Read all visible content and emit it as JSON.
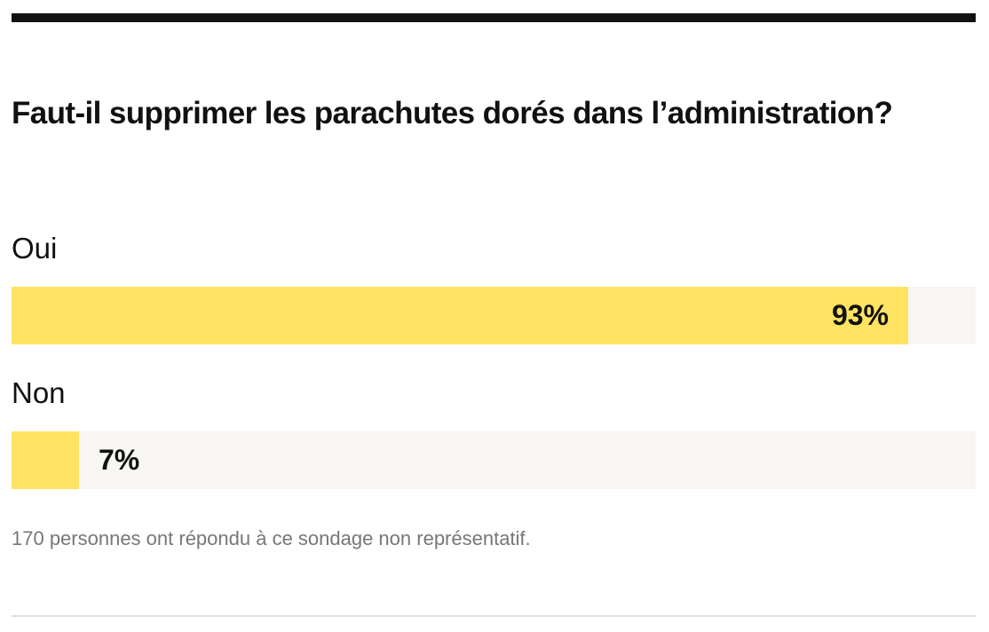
{
  "poll": {
    "question": "Faut-il supprimer les parachutes dorés dans l’administration?",
    "options": [
      {
        "label": "Oui",
        "percent": 93,
        "percent_label": "93%"
      },
      {
        "label": "Non",
        "percent": 7,
        "percent_label": "7%"
      }
    ],
    "footnote": "170 personnes ont répondu à ce sondage non représentatif.",
    "colors": {
      "fill": "#ffe363",
      "track": "#f7f6f2",
      "rule": "#111111",
      "footnote": "#777777"
    }
  }
}
